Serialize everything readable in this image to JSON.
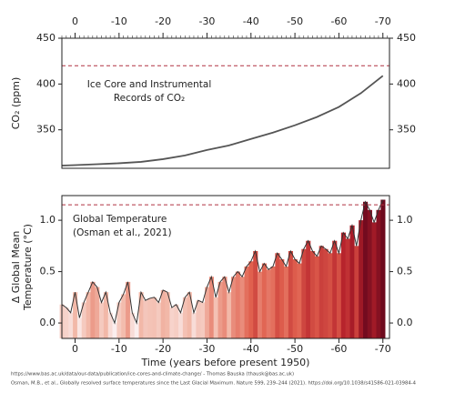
{
  "chart_data": [
    {
      "type": "line",
      "annotation": [
        "Ice Core and Instrumental",
        "Records of CO₂"
      ],
      "ylabel": "CO₂ (ppm)",
      "x": [
        3,
        0,
        -5,
        -10,
        -15,
        -20,
        -25,
        -30,
        -35,
        -40,
        -45,
        -50,
        -55,
        -60,
        -65,
        -70
      ],
      "series": [
        {
          "color": "#555555",
          "values": [
            311,
            311.5,
            312.5,
            313.5,
            315,
            318,
            322,
            328,
            333,
            340,
            347,
            355,
            364,
            375,
            390,
            409
          ]
        }
      ],
      "xlim": [
        3,
        -71.5
      ],
      "xticks": [
        0,
        -10,
        -20,
        -30,
        -40,
        -50,
        -60,
        -70
      ],
      "xtick_position": "top",
      "ylim": [
        308,
        450
      ],
      "yticks": [
        350,
        400,
        450
      ],
      "reference_line": 420,
      "reference_color": "#b03040"
    },
    {
      "type": "area",
      "annotation": [
        "Global Temperature",
        "(Osman et al.,  2021)"
      ],
      "ylabel": [
        "Δ Global Mean",
        "Temperature (°C)"
      ],
      "xlabel": "Time (years before present 1950)",
      "x": [
        3,
        2,
        1,
        0,
        -1,
        -2,
        -3,
        -4,
        -5,
        -6,
        -7,
        -8,
        -9,
        -10,
        -11,
        -12,
        -13,
        -14,
        -15,
        -16,
        -17,
        -18,
        -19,
        -20,
        -21,
        -22,
        -23,
        -24,
        -25,
        -26,
        -27,
        -28,
        -29,
        -30,
        -31,
        -32,
        -33,
        -34,
        -35,
        -36,
        -37,
        -38,
        -39,
        -40,
        -41,
        -42,
        -43,
        -44,
        -45,
        -46,
        -47,
        -48,
        -49,
        -50,
        -51,
        -52,
        -53,
        -54,
        -55,
        -56,
        -57,
        -58,
        -59,
        -60,
        -61,
        -62,
        -63,
        -64,
        -65,
        -66,
        -67,
        -68,
        -69,
        -70
      ],
      "series": [
        {
          "color": "#333333",
          "values": [
            0.18,
            0.15,
            0.1,
            0.3,
            0.05,
            0.2,
            0.3,
            0.4,
            0.35,
            0.2,
            0.3,
            0.1,
            0.0,
            0.2,
            0.28,
            0.4,
            0.1,
            0.0,
            0.3,
            0.22,
            0.24,
            0.25,
            0.2,
            0.32,
            0.3,
            0.15,
            0.18,
            0.1,
            0.25,
            0.3,
            0.1,
            0.22,
            0.2,
            0.35,
            0.45,
            0.25,
            0.4,
            0.45,
            0.3,
            0.45,
            0.5,
            0.45,
            0.55,
            0.6,
            0.7,
            0.5,
            0.58,
            0.52,
            0.55,
            0.68,
            0.62,
            0.55,
            0.7,
            0.62,
            0.58,
            0.72,
            0.8,
            0.7,
            0.65,
            0.75,
            0.72,
            0.68,
            0.8,
            0.68,
            0.88,
            0.82,
            0.95,
            0.75,
            1.0,
            1.18,
            1.1,
            0.98,
            1.1,
            1.2
          ]
        }
      ],
      "colormap": [
        "#fbeeee",
        "#f2b8a8",
        "#e0604e",
        "#b4202a",
        "#6e0a1e"
      ],
      "colormap_range": [
        0,
        1.2
      ],
      "xlim": [
        3,
        -71.5
      ],
      "xticks": [
        0,
        -10,
        -20,
        -30,
        -40,
        -50,
        -60,
        -70
      ],
      "xtick_position": "bottom",
      "ylim": [
        -0.15,
        1.24
      ],
      "yticks": [
        {
          "value": 0,
          "label": "0.0"
        },
        {
          "value": 0.5,
          "label": "0.5"
        },
        {
          "value": 1,
          "label": "1.0"
        }
      ],
      "reference_line": 1.15,
      "reference_color": "#b03040"
    }
  ],
  "footer": [
    "https://www.bas.ac.uk/data/our-data/publication/ice-cores-and-climate-change/  -  Thomas Bauska (thausk@bas.ac.uk)",
    "Osman, M.B., et al., Globally resolved surface temperatures since the Last Glacial Maximum. Nature 599, 239–244 (2021).  https://doi.org/10.1038/s41586-021-03984-4"
  ]
}
